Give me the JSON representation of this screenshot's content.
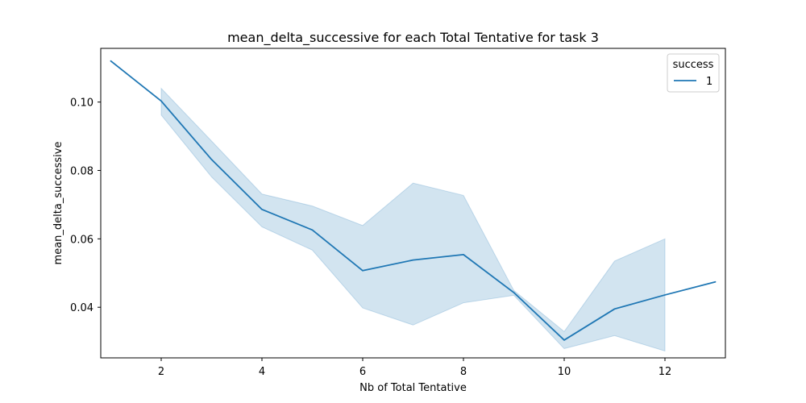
{
  "chart_data": {
    "type": "line",
    "title": "mean_delta_successive for each Total Tentative for task 3",
    "xlabel": "Nb of Total Tentative",
    "ylabel": "mean_delta_successive",
    "xlim": [
      0.8,
      13.2
    ],
    "ylim": [
      0.0252,
      0.1157
    ],
    "x_ticks": [
      2,
      4,
      6,
      8,
      10,
      12
    ],
    "y_ticks": [
      0.04,
      0.06,
      0.08,
      0.1
    ],
    "y_tick_labels": [
      "0.04",
      "0.06",
      "0.08",
      "0.10"
    ],
    "grid": false,
    "legend": {
      "title": "success",
      "placement": "top-right",
      "entries": [
        "1"
      ]
    },
    "series": [
      {
        "name": "1",
        "color": "#1f77b4",
        "x": [
          1,
          2,
          3,
          4,
          5,
          6,
          7,
          8,
          9,
          10,
          11,
          12,
          13
        ],
        "y": [
          0.112,
          0.1003,
          0.0832,
          0.0686,
          0.0626,
          0.0507,
          0.0538,
          0.0554,
          0.0443,
          0.0304,
          0.0395,
          0.0436,
          0.0474
        ]
      }
    ],
    "confidence_band": {
      "color": "#1f77b4",
      "opacity": 0.2,
      "x": [
        2,
        3,
        4,
        5,
        6,
        7,
        8,
        9,
        10,
        11,
        12
      ],
      "lower": [
        0.0962,
        0.0781,
        0.0635,
        0.0567,
        0.0398,
        0.0348,
        0.0413,
        0.0435,
        0.0279,
        0.0317,
        0.0272
      ],
      "upper": [
        0.104,
        0.0886,
        0.0731,
        0.0696,
        0.0639,
        0.0763,
        0.0727,
        0.0449,
        0.0329,
        0.0535,
        0.06
      ]
    }
  }
}
